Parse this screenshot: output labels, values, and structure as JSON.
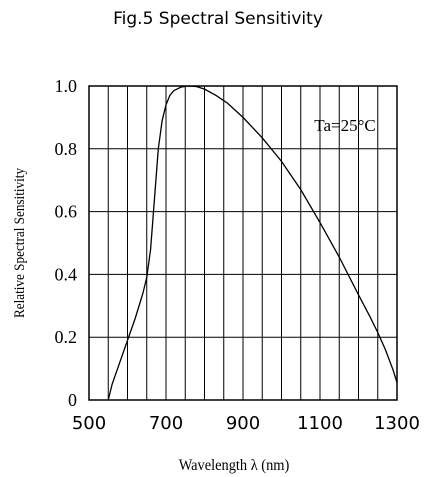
{
  "chart_data": {
    "type": "line",
    "title": "Fig.5 Spectral Sensitivity",
    "xlabel": "Wavelength λ (nm)",
    "ylabel": "Relative Spectral Sensitivity",
    "annotation": "Ta=25°C",
    "xlim": [
      500,
      1300
    ],
    "ylim": [
      0,
      1.0
    ],
    "x_ticks": [
      500,
      700,
      900,
      1100,
      1300
    ],
    "x_tick_labels": [
      "500",
      "700",
      "900",
      "1100",
      "1300"
    ],
    "y_ticks": [
      0,
      0.2,
      0.4,
      0.6,
      0.8,
      1.0
    ],
    "y_tick_labels": [
      "0",
      "0.2",
      "0.4",
      "0.6",
      "0.8",
      "1.0"
    ],
    "grid": true,
    "vertical_grid_step": 50,
    "series": [
      {
        "x": [
          550,
          560,
          580,
          600,
          620,
          640,
          650,
          660,
          670,
          680,
          690,
          700,
          710,
          720,
          740,
          760,
          780,
          800,
          830,
          860,
          900,
          950,
          1000,
          1050,
          1100,
          1150,
          1200,
          1230,
          1250,
          1270,
          1290,
          1300
        ],
        "y": [
          0.0,
          0.05,
          0.12,
          0.19,
          0.26,
          0.34,
          0.39,
          0.48,
          0.64,
          0.8,
          0.89,
          0.94,
          0.97,
          0.985,
          0.997,
          1.0,
          0.998,
          0.99,
          0.97,
          0.945,
          0.9,
          0.835,
          0.76,
          0.67,
          0.565,
          0.455,
          0.335,
          0.265,
          0.215,
          0.16,
          0.095,
          0.055
        ]
      }
    ]
  }
}
